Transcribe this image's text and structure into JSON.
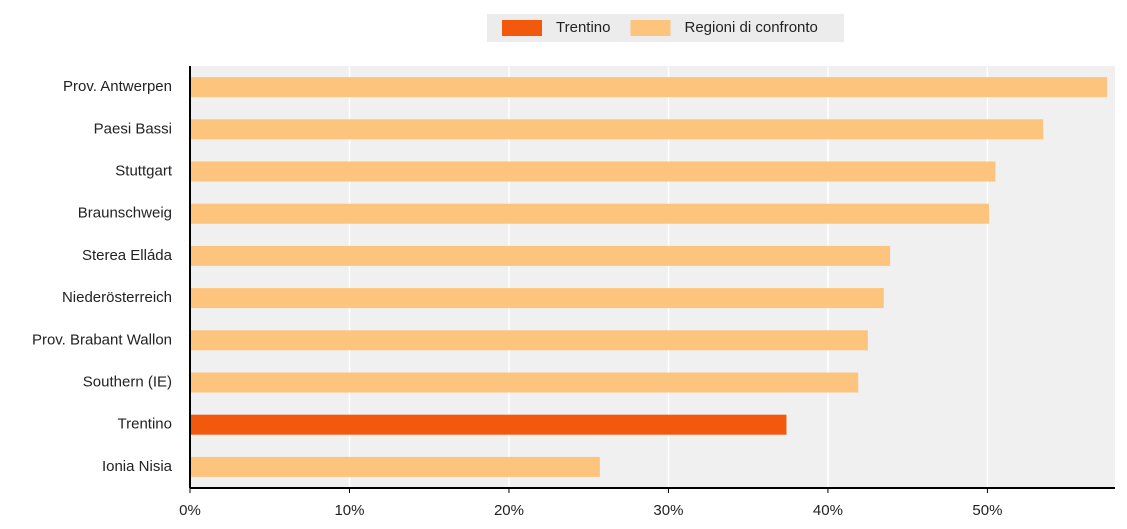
{
  "chart_data": {
    "type": "hbar",
    "categories": [
      "Prov. Antwerpen",
      "Paesi Bassi",
      "Stuttgart",
      "Braunschweig",
      "Sterea Elláda",
      "Niederösterreich",
      "Prov. Brabant Wallon",
      "Southern (IE)",
      "Trentino",
      "Ionia Nisia"
    ],
    "series": [
      {
        "name": "Trentino",
        "color": "#f2590c",
        "values": [
          null,
          null,
          null,
          null,
          null,
          null,
          null,
          null,
          37.4,
          null
        ]
      },
      {
        "name": "Regioni di confronto",
        "color": "#fdc47e",
        "values": [
          57.5,
          53.5,
          50.5,
          50.1,
          43.9,
          43.5,
          42.5,
          41.9,
          null,
          25.7
        ]
      }
    ],
    "xlim": [
      0,
      58
    ],
    "xticks": [
      {
        "value": 0,
        "label": "0%"
      },
      {
        "value": 10,
        "label": "10%"
      },
      {
        "value": 20,
        "label": "20%"
      },
      {
        "value": 30,
        "label": "30%"
      },
      {
        "value": 40,
        "label": "40%"
      },
      {
        "value": 50,
        "label": "50%"
      }
    ],
    "grid": true
  }
}
